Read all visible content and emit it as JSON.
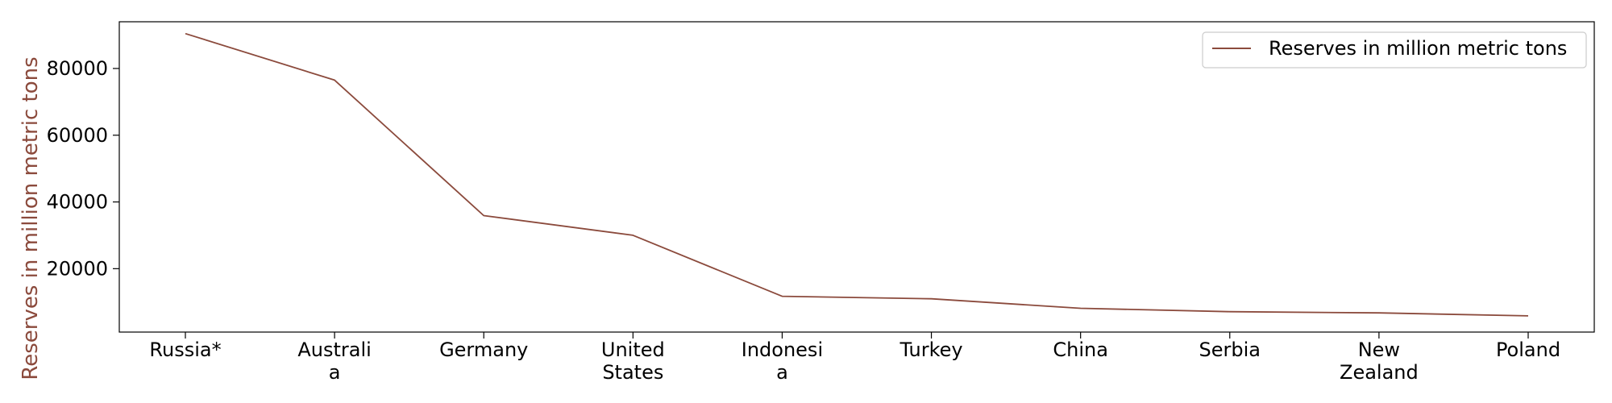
{
  "chart_data": {
    "type": "line",
    "title": "",
    "xlabel": "",
    "ylabel": "Reserves in million metric tons",
    "categories": [
      [
        "Russia*"
      ],
      [
        "Australi",
        "a"
      ],
      [
        "Germany"
      ],
      [
        "United",
        "States"
      ],
      [
        "Indonesi",
        "a"
      ],
      [
        "Turkey"
      ],
      [
        "China"
      ],
      [
        "Serbia"
      ],
      [
        "New",
        "Zealand"
      ],
      [
        "Poland"
      ]
    ],
    "series": [
      {
        "name": "Reserves in million metric tons",
        "color": "#8B4A3C",
        "values": [
          90447,
          76508,
          35900,
          30003,
          11728,
          10975,
          8128,
          7112,
          6750,
          5865
        ]
      }
    ],
    "yticks": [
      20000,
      40000,
      60000,
      80000
    ],
    "ylim": [
      1000,
      94000
    ],
    "grid": false,
    "legend": "top-right"
  }
}
